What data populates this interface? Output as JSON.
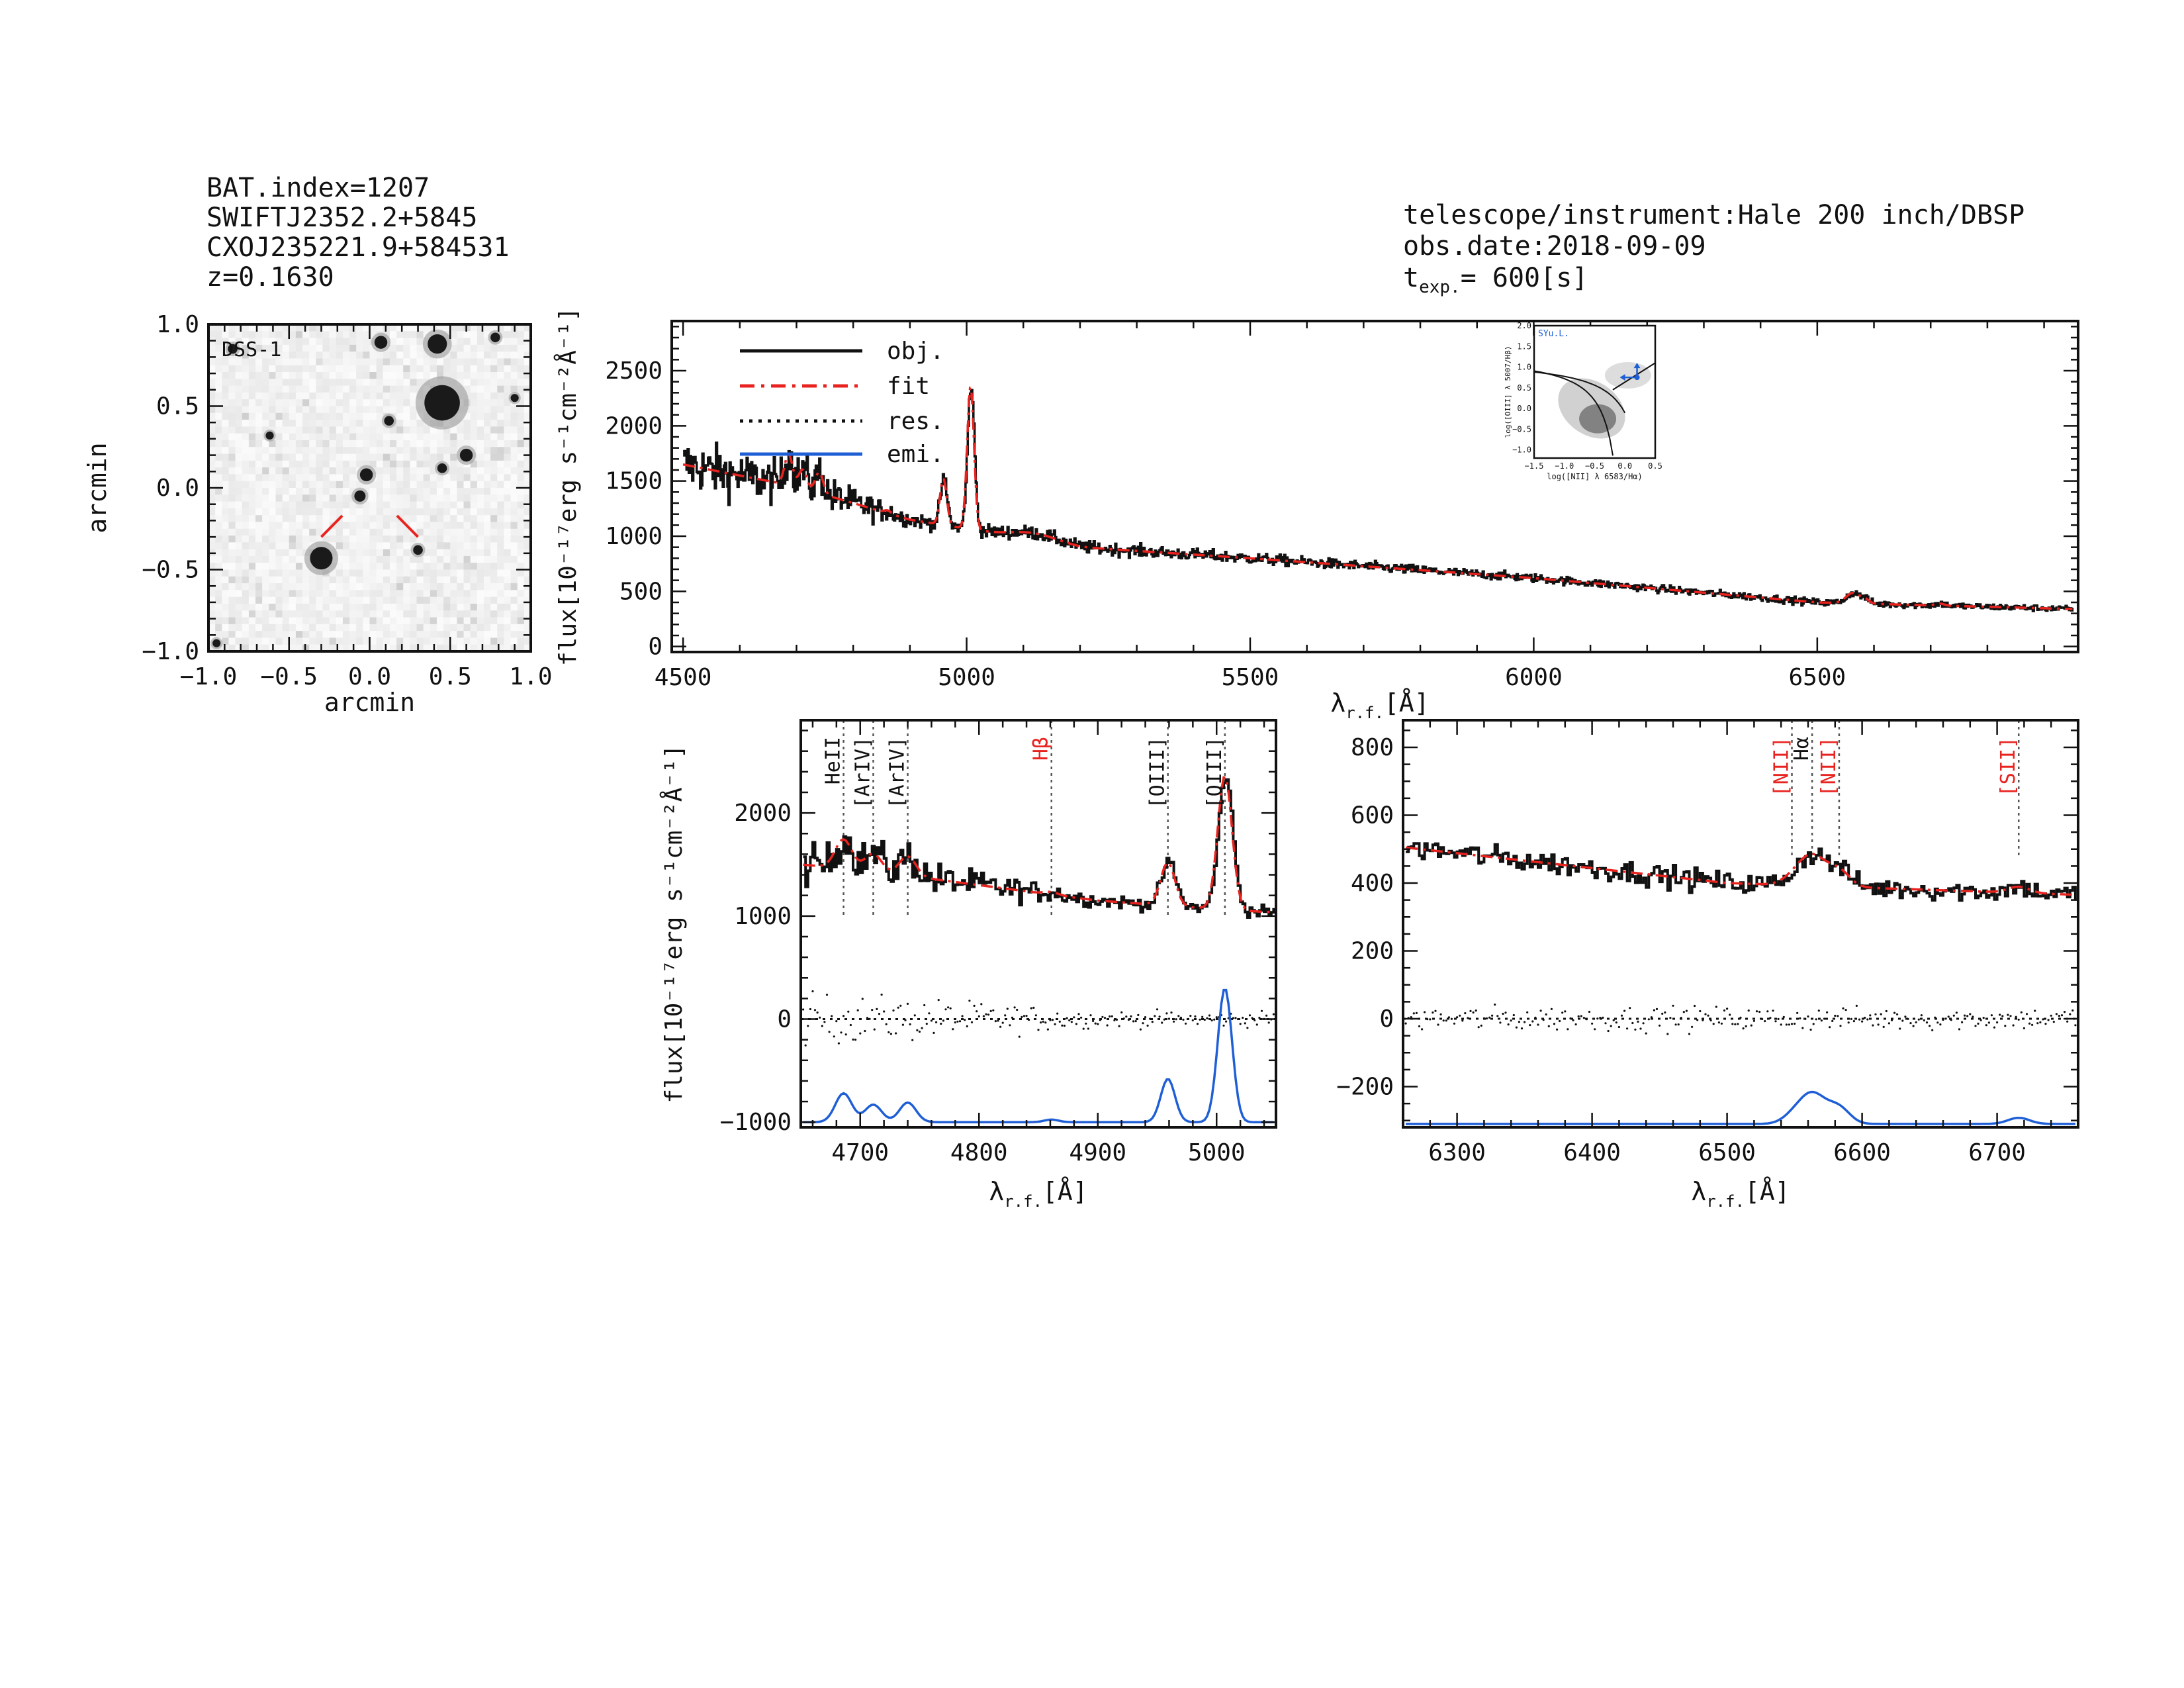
{
  "header_left": {
    "bat_index": "BAT.index=1207",
    "swift_name": "SWIFTJ2352.2+5845",
    "cxo_name": "CXOJ235221.9+584531",
    "redshift": "z=0.1630"
  },
  "header_right": {
    "telescope": "telescope/instrument:Hale 200 inch/DBSP",
    "obs_date": "obs.date:2018-09-09",
    "texp_label": "t",
    "texp_sub": "exp.",
    "texp_value": "= 600[s]"
  },
  "colors": {
    "obj": "#111111",
    "fit": "#e8231f",
    "emi": "#1f5fd6",
    "res": "#111111",
    "bpt": "#1f5fd6"
  },
  "chart_data": [
    {
      "id": "image_cutout",
      "type": "image",
      "title": "DSS-1",
      "xlabel": "arcmin",
      "ylabel": "arcmin",
      "xlim": [
        -1.0,
        1.0
      ],
      "ylim": [
        -1.0,
        1.0
      ],
      "xticks": [
        "-1.0",
        "-0.5",
        "0.0",
        "0.5",
        "1.0"
      ],
      "yticks": [
        "-1.0",
        "-0.5",
        "0.0",
        "0.5",
        "1.0"
      ],
      "sources": [
        [
          -0.3,
          -0.43,
          0.07
        ],
        [
          0.45,
          0.52,
          0.11
        ],
        [
          0.42,
          0.88,
          0.06
        ],
        [
          0.07,
          0.89,
          0.04
        ],
        [
          -0.02,
          0.08,
          0.04
        ],
        [
          -0.06,
          -0.05,
          0.035
        ],
        [
          0.6,
          0.2,
          0.04
        ],
        [
          0.45,
          0.12,
          0.03
        ],
        [
          0.12,
          0.41,
          0.03
        ],
        [
          0.3,
          -0.38,
          0.03
        ],
        [
          -0.85,
          0.85,
          0.03
        ],
        [
          -0.62,
          0.32,
          0.025
        ],
        [
          0.78,
          0.92,
          0.03
        ],
        [
          0.9,
          0.55,
          0.025
        ],
        [
          -0.95,
          -0.95,
          0.025
        ]
      ],
      "marker_lines": [
        [
          -0.3,
          -0.3,
          -0.17,
          -0.17
        ],
        [
          0.3,
          -0.3,
          0.17,
          -0.17
        ]
      ]
    },
    {
      "id": "full_spectrum",
      "type": "line",
      "xlabel": "λr.f.[Å]",
      "ylabel": "flux[10⁻¹⁷erg s⁻¹cm⁻²Å⁻¹]",
      "xlim": [
        4480,
        6960
      ],
      "ylim": [
        -50,
        2950
      ],
      "xticks": [
        4500,
        5000,
        5500,
        6000,
        6500
      ],
      "yticks": [
        0,
        500,
        1000,
        1500,
        2000,
        2500
      ],
      "legend": [
        "obj.",
        "fit",
        "res.",
        "emi."
      ],
      "continuum_anchors": [
        [
          4500,
          1650
        ],
        [
          4700,
          1450
        ],
        [
          4900,
          1150
        ],
        [
          5200,
          900
        ],
        [
          5500,
          800
        ],
        [
          6000,
          620
        ],
        [
          6500,
          400
        ],
        [
          6950,
          340
        ]
      ],
      "emission_lines": [
        {
          "center": 5007,
          "amp": 1300,
          "sigma": 6
        },
        {
          "center": 4959,
          "amp": 420,
          "sigma": 6
        },
        {
          "center": 4686,
          "amp": 280,
          "sigma": 7
        },
        {
          "center": 4711,
          "amp": 170,
          "sigma": 7
        },
        {
          "center": 4740,
          "amp": 190,
          "sigma": 7
        },
        {
          "center": 6563,
          "amp": 90,
          "sigma": 10
        }
      ],
      "noise": [
        [
          4500,
          220
        ],
        [
          4750,
          160
        ],
        [
          4900,
          60
        ],
        [
          6000,
          35
        ],
        [
          6950,
          25
        ]
      ]
    },
    {
      "id": "bpt_inset",
      "type": "scatter",
      "title": "SYu.L.",
      "xlabel": "log([NII] λ 6583/Hα)",
      "ylabel": "log([OIII] λ 5007/Hβ)",
      "xlim": [
        -1.5,
        0.5
      ],
      "ylim": [
        -1.2,
        2.0
      ],
      "xticks": [
        "-1.5",
        "-1.0",
        "-0.5",
        "0.0",
        "0.5"
      ],
      "yticks": [
        "-1.0",
        "-0.5",
        "0.0",
        "0.5",
        "1.0",
        "1.5",
        "2.0"
      ],
      "point": {
        "x": 0.2,
        "y": 0.75,
        "arrows": [
          "left",
          "up"
        ]
      }
    },
    {
      "id": "hbeta_zoom",
      "type": "line",
      "xlabel": "λr.f.[Å]",
      "ylabel": "flux[10⁻¹⁷erg s⁻¹cm⁻²Å⁻¹]",
      "xlim": [
        4650,
        5050
      ],
      "ylim": [
        -1050,
        2900
      ],
      "xticks": [
        4700,
        4800,
        4900,
        5000
      ],
      "yticks": [
        -1000,
        0,
        1000,
        2000
      ],
      "emi_offset": -1000,
      "line_markers": [
        {
          "label": "HeII",
          "x": 4686,
          "color": "#111111"
        },
        {
          "label": "[ArIV]",
          "x": 4711,
          "color": "#111111"
        },
        {
          "label": "[ArIV]",
          "x": 4740,
          "color": "#111111"
        },
        {
          "label": "Hβ",
          "x": 4861,
          "color": "#e8231f"
        },
        {
          "label": "[OIII]",
          "x": 4959,
          "color": "#111111"
        },
        {
          "label": "[OIII]",
          "x": 5007,
          "color": "#111111"
        }
      ]
    },
    {
      "id": "halpha_zoom",
      "type": "line",
      "xlabel": "λr.f.[Å]",
      "ylabel": "",
      "xlim": [
        6260,
        6760
      ],
      "ylim": [
        -320,
        880
      ],
      "xticks": [
        6300,
        6400,
        6500,
        6600,
        6700
      ],
      "yticks": [
        -200,
        0,
        200,
        400,
        600,
        800
      ],
      "emi_offset": -310,
      "line_markers": [
        {
          "label": "[NII]",
          "x": 6548,
          "color": "#e8231f"
        },
        {
          "label": "Hα",
          "x": 6563,
          "color": "#111111"
        },
        {
          "label": "[NII]",
          "x": 6583,
          "color": "#e8231f"
        },
        {
          "label": "[SII]",
          "x": 6716,
          "color": "#e8231f"
        }
      ]
    }
  ]
}
